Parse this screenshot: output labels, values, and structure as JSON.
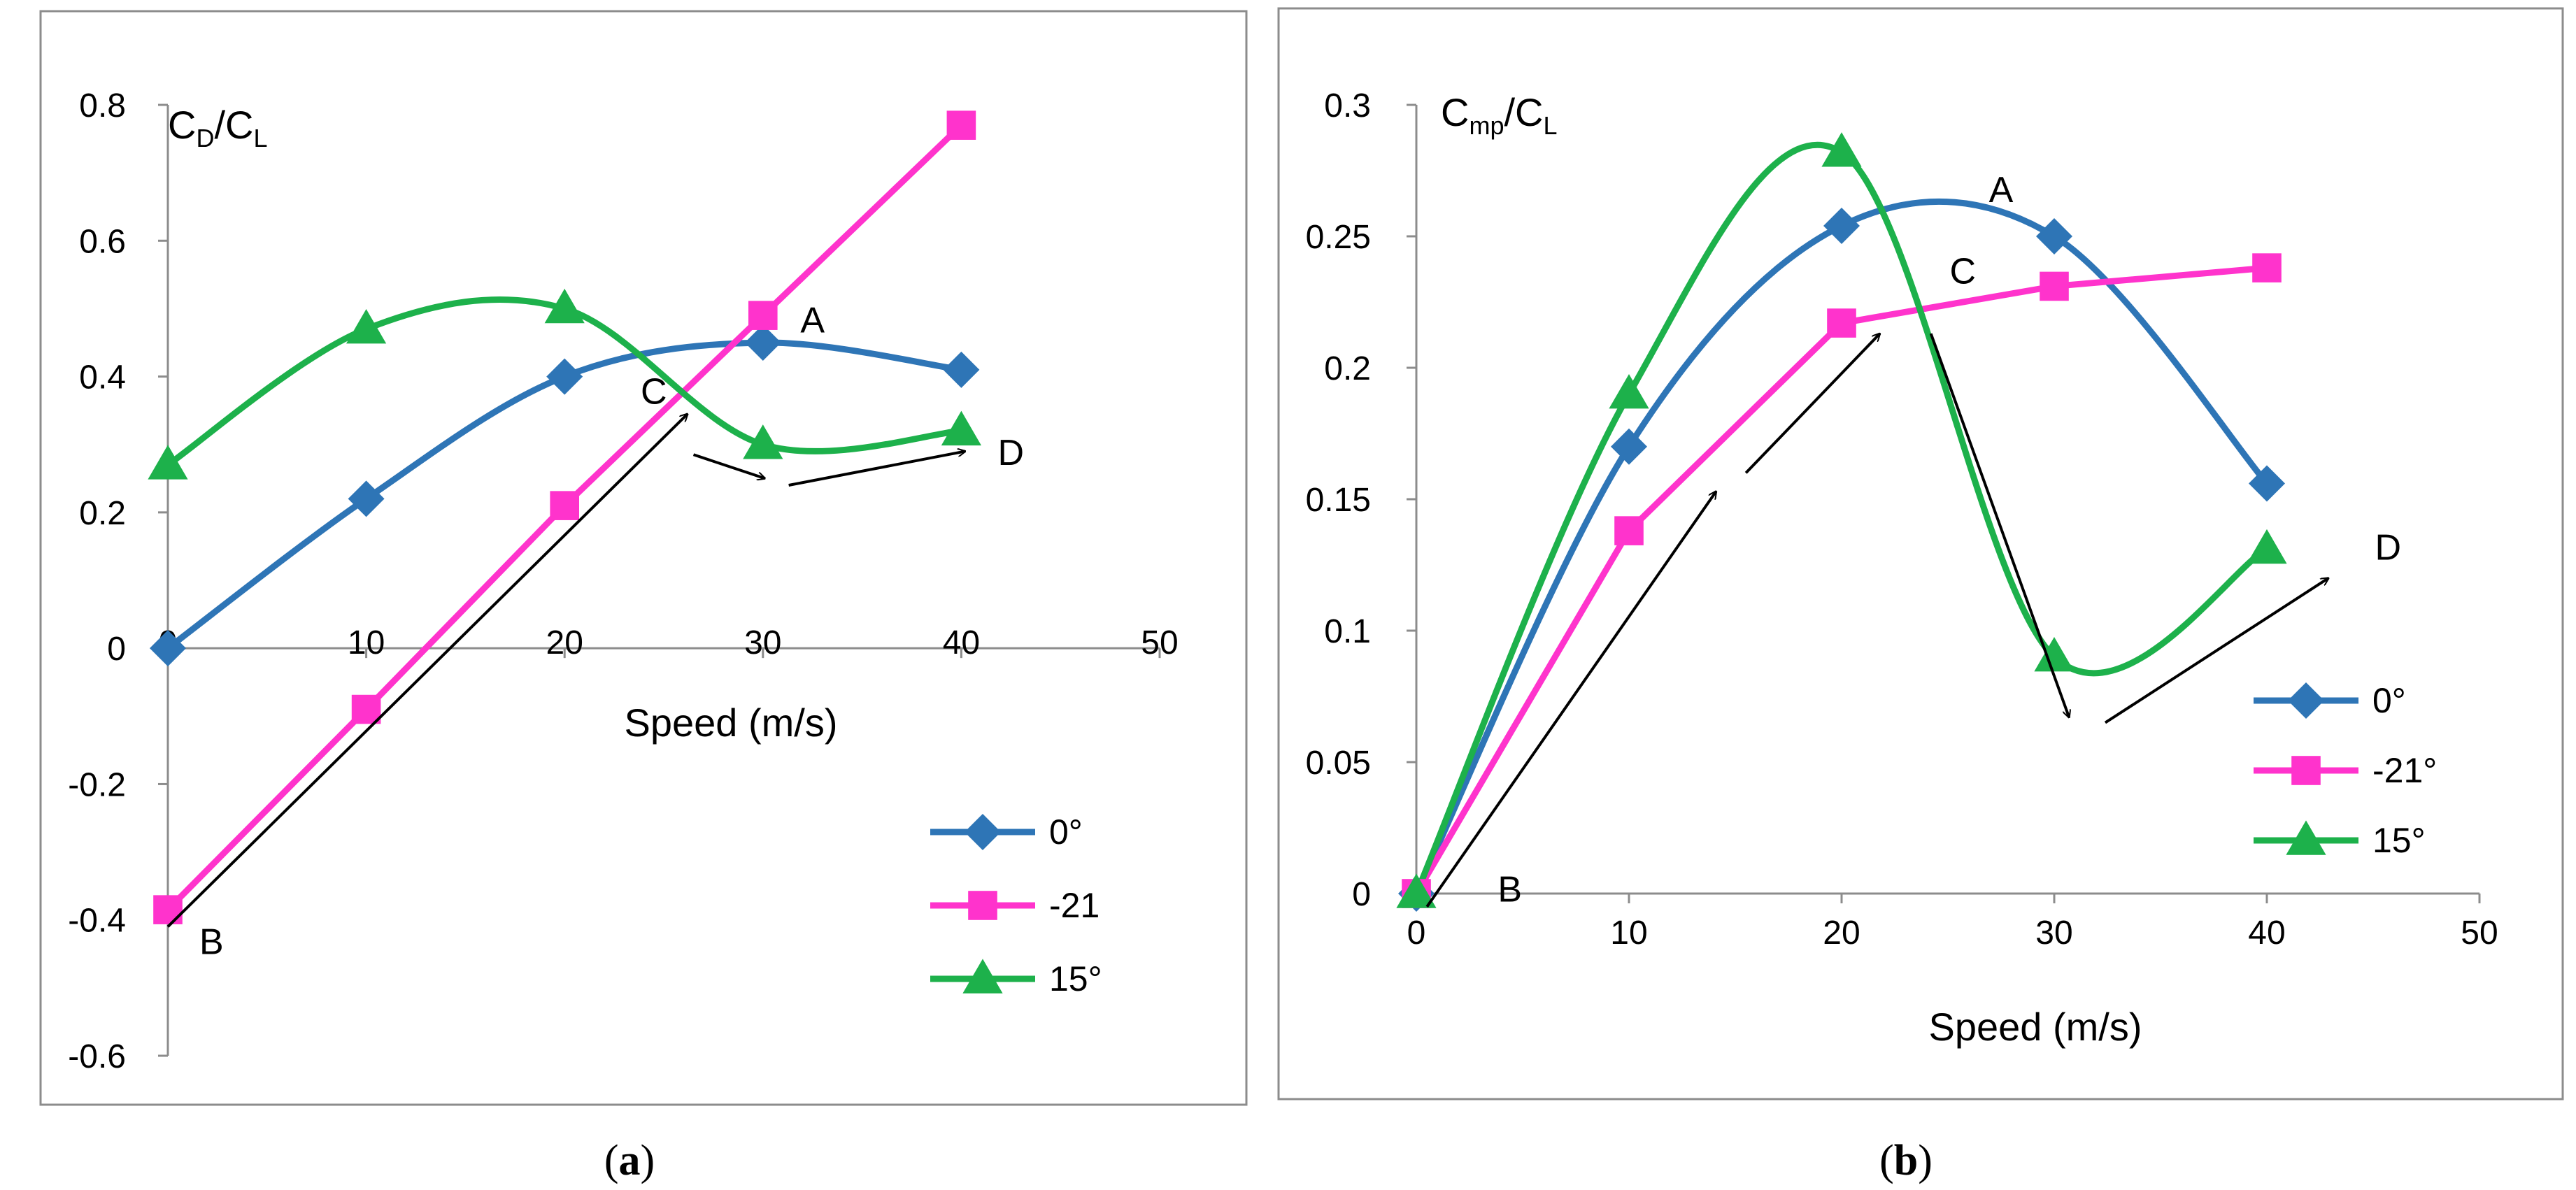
{
  "chart_data": [
    {
      "id": "a",
      "type": "line",
      "caption_open": "(",
      "caption_letter": "a",
      "caption_close": ")",
      "ylabel_main": "C",
      "ylabel_sub1": "D",
      "ylabel_slash": "/C",
      "ylabel_sub2": "L",
      "xlabel": "Speed (m/s)",
      "xlim": [
        0,
        50
      ],
      "ylim": [
        -0.6,
        0.8
      ],
      "xticks": [
        "0",
        "10",
        "20",
        "30",
        "40",
        "50"
      ],
      "xtick_values": [
        0,
        10,
        20,
        30,
        40,
        50
      ],
      "yticks": [
        "-0.6",
        "-0.4",
        "-0.2",
        "0",
        "0.2",
        "0.4",
        "0.6",
        "0.8"
      ],
      "ytick_values": [
        -0.6,
        -0.4,
        -0.2,
        0,
        0.2,
        0.4,
        0.6,
        0.8
      ],
      "x": [
        0,
        10,
        20,
        30,
        40
      ],
      "series": [
        {
          "name": "0°",
          "color": "#2E75B6",
          "marker": "diamond",
          "values": [
            0,
            0.22,
            0.4,
            0.45,
            0.41
          ]
        },
        {
          "name": "-21",
          "color": "#FF33CC",
          "marker": "square",
          "values": [
            -0.385,
            -0.09,
            0.21,
            0.49,
            0.77
          ]
        },
        {
          "name": "15°",
          "color": "#1DB14B",
          "marker": "triangle",
          "values": [
            0.27,
            0.47,
            0.5,
            0.3,
            0.32
          ]
        }
      ],
      "annotations": [
        {
          "label": "A",
          "x": 32.5,
          "y": 0.465
        },
        {
          "label": "B",
          "x": 2.2,
          "y": -0.45
        },
        {
          "label": "C",
          "x": 24.5,
          "y": 0.36
        },
        {
          "label": "D",
          "x": 42.5,
          "y": 0.27
        }
      ],
      "arrows": [
        {
          "from": [
            0,
            -0.41
          ],
          "to": [
            26.2,
            0.345
          ]
        },
        {
          "from": [
            26.5,
            0.285
          ],
          "to": [
            30.1,
            0.25
          ]
        },
        {
          "from": [
            31.3,
            0.24
          ],
          "to": [
            40.2,
            0.29
          ]
        }
      ]
    },
    {
      "id": "b",
      "type": "line",
      "caption_open": "(",
      "caption_letter": "b",
      "caption_close": ")",
      "ylabel_main": "C",
      "ylabel_sub1": "mp",
      "ylabel_slash": "/C",
      "ylabel_sub2": "L",
      "xlabel": "Speed (m/s)",
      "xlim": [
        0,
        50
      ],
      "ylim": [
        0,
        0.3
      ],
      "xticks": [
        "0",
        "10",
        "20",
        "30",
        "40",
        "50"
      ],
      "xtick_values": [
        0,
        10,
        20,
        30,
        40,
        50
      ],
      "yticks": [
        "0",
        "0.05",
        "0.1",
        "0.15",
        "0.2",
        "0.25",
        "0.3"
      ],
      "ytick_values": [
        0,
        0.05,
        0.1,
        0.15,
        0.2,
        0.25,
        0.3
      ],
      "x": [
        0,
        10,
        20,
        30,
        40
      ],
      "series": [
        {
          "name": "0°",
          "color": "#2E75B6",
          "marker": "diamond",
          "values": [
            0,
            0.17,
            0.254,
            0.25,
            0.156
          ]
        },
        {
          "name": "-21°",
          "color": "#FF33CC",
          "marker": "square",
          "values": [
            0,
            0.138,
            0.217,
            0.231,
            0.238
          ]
        },
        {
          "name": "15°",
          "color": "#1DB14B",
          "marker": "triangle",
          "values": [
            0,
            0.19,
            0.282,
            0.09,
            0.131
          ]
        }
      ],
      "annotations": [
        {
          "label": "A",
          "x": 27.5,
          "y": 0.263
        },
        {
          "label": "B",
          "x": 4.4,
          "y": -0.003
        },
        {
          "label": "C",
          "x": 25.7,
          "y": 0.232
        },
        {
          "label": "D",
          "x": 45.7,
          "y": 0.127
        }
      ],
      "arrows": [
        {
          "from": [
            0.5,
            -0.005
          ],
          "to": [
            14.1,
            0.153
          ]
        },
        {
          "from": [
            15.5,
            0.16
          ],
          "to": [
            21.8,
            0.213
          ]
        },
        {
          "from": [
            24.2,
            0.213
          ],
          "to": [
            30.7,
            0.067
          ]
        },
        {
          "from": [
            32.4,
            0.065
          ],
          "to": [
            42.9,
            0.12
          ]
        }
      ]
    }
  ]
}
